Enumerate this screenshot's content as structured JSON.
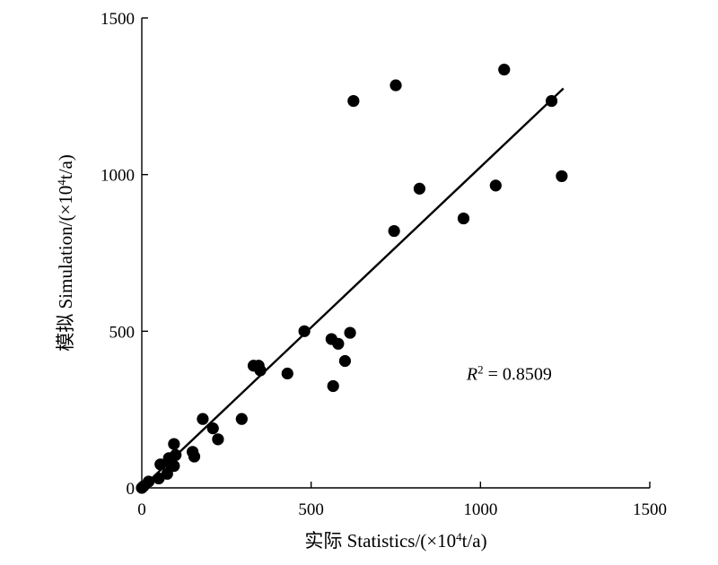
{
  "chart_data": {
    "type": "scatter",
    "title": "",
    "xlabel_prefix": "实际 Statistics/(×10",
    "xlabel_sup": "4",
    "xlabel_suffix": "t/a)",
    "ylabel_prefix": "模拟 Simulation/(×10",
    "ylabel_sup": "4",
    "ylabel_suffix": "t/a)",
    "xlim": [
      0,
      1500
    ],
    "ylim": [
      0,
      1500
    ],
    "xticks": [
      0,
      500,
      1000,
      1500
    ],
    "yticks": [
      0,
      500,
      1000,
      1500
    ],
    "grid": false,
    "annotation": {
      "label": "R",
      "sup": "2",
      "text": " = 0.8509",
      "x": 1085,
      "y": 345
    },
    "fit_line": {
      "x": [
        0,
        1245
      ],
      "y": [
        0,
        1275
      ]
    },
    "series": [
      {
        "points": [
          [
            0,
            0
          ],
          [
            5,
            5
          ],
          [
            20,
            20
          ],
          [
            50,
            30
          ],
          [
            55,
            75
          ],
          [
            75,
            45
          ],
          [
            80,
            80
          ],
          [
            80,
            95
          ],
          [
            95,
            70
          ],
          [
            95,
            140
          ],
          [
            100,
            105
          ],
          [
            150,
            115
          ],
          [
            155,
            100
          ],
          [
            180,
            220
          ],
          [
            210,
            190
          ],
          [
            225,
            155
          ],
          [
            295,
            220
          ],
          [
            330,
            390
          ],
          [
            345,
            390
          ],
          [
            350,
            375
          ],
          [
            430,
            365
          ],
          [
            480,
            500
          ],
          [
            560,
            475
          ],
          [
            565,
            325
          ],
          [
            580,
            460
          ],
          [
            600,
            405
          ],
          [
            615,
            495
          ],
          [
            625,
            1235
          ],
          [
            745,
            820
          ],
          [
            750,
            1285
          ],
          [
            820,
            955
          ],
          [
            950,
            860
          ],
          [
            1045,
            965
          ],
          [
            1070,
            1335
          ],
          [
            1210,
            1235
          ],
          [
            1240,
            995
          ]
        ]
      }
    ]
  }
}
